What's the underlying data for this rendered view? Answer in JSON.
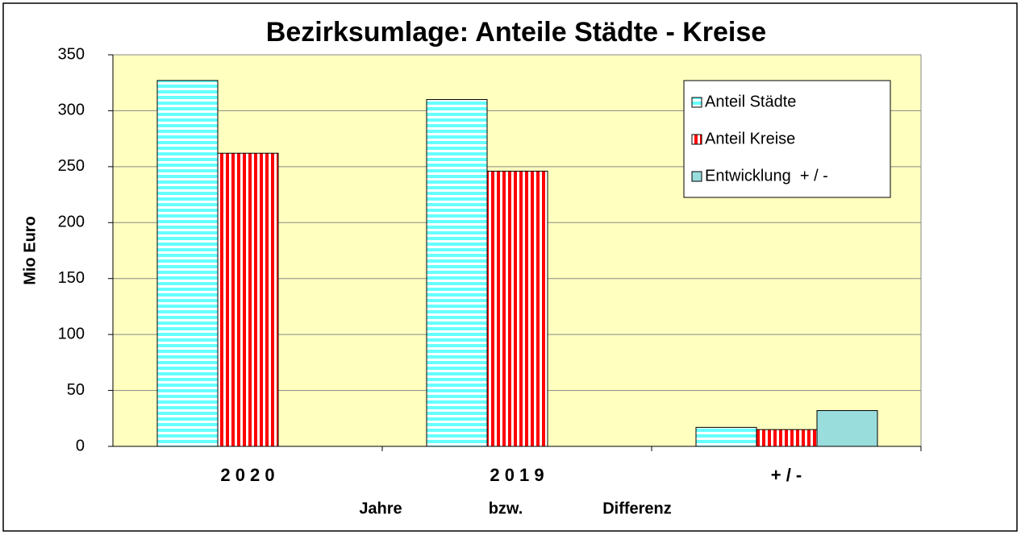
{
  "chart_data": {
    "type": "bar",
    "title": "Bezirksumlage:  Anteile Städte - Kreise",
    "y_label": "Mio Euro",
    "x_label": [
      "Jahre",
      "bzw.",
      "Differenz"
    ],
    "categories": [
      "2 0 2 0",
      "2 0 1 9",
      "+ / -"
    ],
    "series": [
      {
        "name": "Anteil Städte",
        "color": "#66ffff",
        "values": [
          327,
          310,
          17
        ]
      },
      {
        "name": "Anteil Kreise",
        "color": "#ff0000",
        "values": [
          262,
          246,
          15
        ]
      },
      {
        "name": "Entwicklung  + / -",
        "color": "#99dddd",
        "values": [
          null,
          null,
          32
        ]
      }
    ],
    "ylim": [
      0,
      350
    ],
    "yticks": [
      0,
      50,
      100,
      150,
      200,
      250,
      300,
      350
    ],
    "grid": true,
    "legend": "upper right"
  }
}
